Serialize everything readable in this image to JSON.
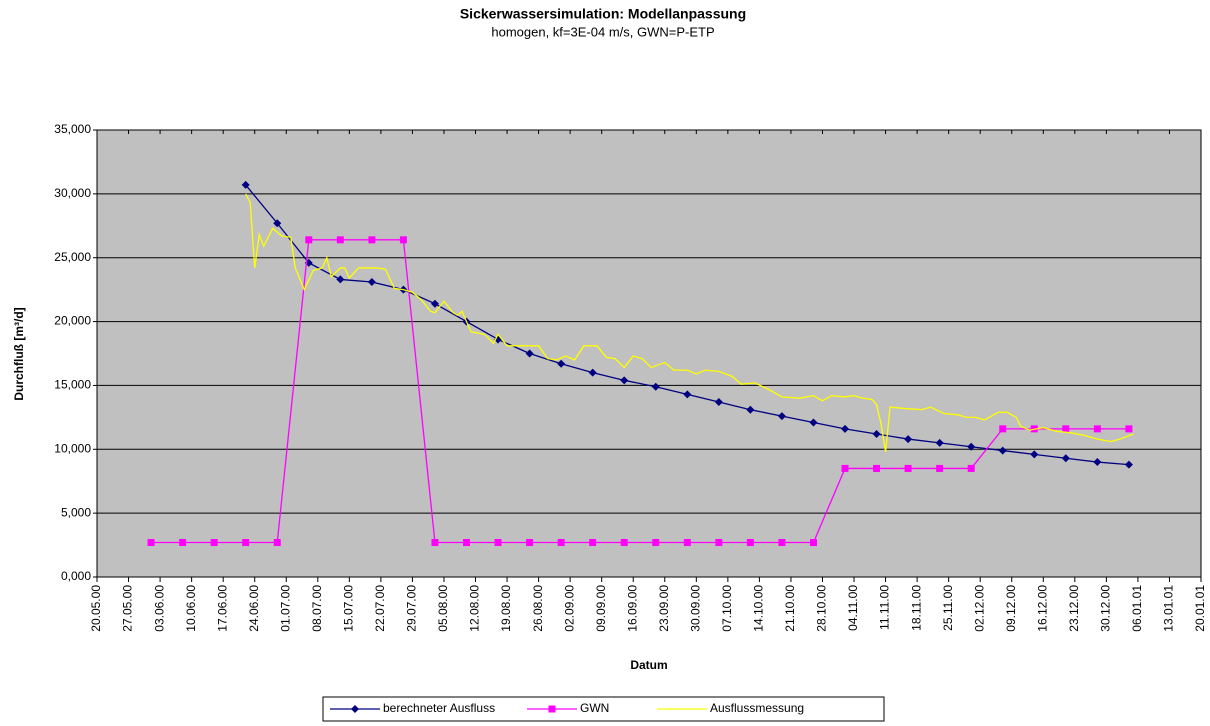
{
  "chart_data": {
    "type": "line",
    "title": "Sickerwassersimulation: Modellanpassung",
    "subtitle": "homogen, kf=3E-04 m/s, GWN=P-ETP",
    "x_label": "Datum",
    "y_label": "Durchfluß [m³/d]",
    "xlim": [
      "2000-05-20",
      "2001-01-20"
    ],
    "xticks": [
      {
        "value": "2000-05-20",
        "label": "20.05.00"
      },
      {
        "value": "2000-05-27",
        "label": "27.05.00"
      },
      {
        "value": "2000-06-03",
        "label": "03.06.00"
      },
      {
        "value": "2000-06-10",
        "label": "10.06.00"
      },
      {
        "value": "2000-06-17",
        "label": "17.06.00"
      },
      {
        "value": "2000-06-24",
        "label": "24.06.00"
      },
      {
        "value": "2000-07-01",
        "label": "01.07.00"
      },
      {
        "value": "2000-07-08",
        "label": "08.07.00"
      },
      {
        "value": "2000-07-15",
        "label": "15.07.00"
      },
      {
        "value": "2000-07-22",
        "label": "22.07.00"
      },
      {
        "value": "2000-07-29",
        "label": "29.07.00"
      },
      {
        "value": "2000-08-05",
        "label": "05.08.00"
      },
      {
        "value": "2000-08-12",
        "label": "12.08.00"
      },
      {
        "value": "2000-08-19",
        "label": "19.08.00"
      },
      {
        "value": "2000-08-26",
        "label": "26.08.00"
      },
      {
        "value": "2000-09-02",
        "label": "02.09.00"
      },
      {
        "value": "2000-09-09",
        "label": "09.09.00"
      },
      {
        "value": "2000-09-16",
        "label": "16.09.00"
      },
      {
        "value": "2000-09-23",
        "label": "23.09.00"
      },
      {
        "value": "2000-09-30",
        "label": "30.09.00"
      },
      {
        "value": "2000-10-07",
        "label": "07.10.00"
      },
      {
        "value": "2000-10-14",
        "label": "14.10.00"
      },
      {
        "value": "2000-10-21",
        "label": "21.10.00"
      },
      {
        "value": "2000-10-28",
        "label": "28.10.00"
      },
      {
        "value": "2000-11-04",
        "label": "04.11.00"
      },
      {
        "value": "2000-11-11",
        "label": "11.11.00"
      },
      {
        "value": "2000-11-18",
        "label": "18.11.00"
      },
      {
        "value": "2000-11-25",
        "label": "25.11.00"
      },
      {
        "value": "2000-12-02",
        "label": "02.12.00"
      },
      {
        "value": "2000-12-09",
        "label": "09.12.00"
      },
      {
        "value": "2000-12-16",
        "label": "16.12.00"
      },
      {
        "value": "2000-12-23",
        "label": "23.12.00"
      },
      {
        "value": "2000-12-30",
        "label": "30.12.00"
      },
      {
        "value": "2001-01-06",
        "label": "06.01.01"
      },
      {
        "value": "2001-01-13",
        "label": "13.01.01"
      },
      {
        "value": "2001-01-20",
        "label": "20.01.01"
      }
    ],
    "ylim": [
      0,
      35000
    ],
    "yticks": [
      {
        "value": 0,
        "label": "0,000"
      },
      {
        "value": 5000,
        "label": "5,000"
      },
      {
        "value": 10000,
        "label": "10,000"
      },
      {
        "value": 15000,
        "label": "15,000"
      },
      {
        "value": 20000,
        "label": "20,000"
      },
      {
        "value": 25000,
        "label": "25,000"
      },
      {
        "value": 30000,
        "label": "30,000"
      },
      {
        "value": 35000,
        "label": "35,000"
      }
    ],
    "grid": true,
    "legend": "bottom",
    "x": [
      "2000-06-01",
      "2000-06-08",
      "2000-06-15",
      "2000-06-22",
      "2000-06-29",
      "2000-07-06",
      "2000-07-13",
      "2000-07-20",
      "2000-07-27",
      "2000-08-03",
      "2000-08-10",
      "2000-08-17",
      "2000-08-24",
      "2000-08-31",
      "2000-09-07",
      "2000-09-14",
      "2000-09-21",
      "2000-09-28",
      "2000-10-05",
      "2000-10-12",
      "2000-10-19",
      "2000-10-26",
      "2000-11-02",
      "2000-11-09",
      "2000-11-16",
      "2000-11-23",
      "2000-11-30",
      "2000-12-07",
      "2000-12-14",
      "2000-12-21",
      "2000-12-28",
      "2001-01-04"
    ],
    "series": [
      {
        "name": "berechneter Ausfluss",
        "color": "#000080",
        "marker": "diamond",
        "values": [
          null,
          null,
          null,
          30700,
          27700,
          24600,
          23300,
          23100,
          22500,
          21400,
          20000,
          18600,
          17500,
          16700,
          16000,
          15400,
          14900,
          14300,
          13700,
          13100,
          12600,
          12100,
          11600,
          11200,
          10800,
          10500,
          10200,
          9900,
          9600,
          9300,
          9000,
          8800
        ]
      },
      {
        "name": "GWN",
        "color": "#ff00ff",
        "marker": "square",
        "values": [
          2700,
          2700,
          2700,
          2700,
          2700,
          26400,
          26400,
          26400,
          26400,
          2700,
          2700,
          2700,
          2700,
          2700,
          2700,
          2700,
          2700,
          2700,
          2700,
          2700,
          2700,
          2700,
          8500,
          8500,
          8500,
          8500,
          8500,
          11600,
          11600,
          11600,
          11600,
          11600
        ]
      },
      {
        "name": "Ausflussmessung",
        "color": "#ffff00",
        "marker": "none",
        "x": [
          "2000-06-22",
          "2000-06-23",
          "2000-06-24",
          "2000-06-25",
          "2000-06-26",
          "2000-06-28",
          "2000-06-30",
          "2000-07-02",
          "2000-07-03",
          "2000-07-05",
          "2000-07-07",
          "2000-07-09",
          "2000-07-10",
          "2000-07-11",
          "2000-07-13",
          "2000-07-14",
          "2000-07-15",
          "2000-07-17",
          "2000-07-21",
          "2000-07-23",
          "2000-07-25",
          "2000-07-27",
          "2000-07-29",
          "2000-07-31",
          "2000-08-02",
          "2000-08-03",
          "2000-08-05",
          "2000-08-07",
          "2000-08-08",
          "2000-08-09",
          "2000-08-11",
          "2000-08-14",
          "2000-08-16",
          "2000-08-17",
          "2000-08-19",
          "2000-08-23",
          "2000-08-26",
          "2000-08-28",
          "2000-08-30",
          "2000-09-01",
          "2000-09-03",
          "2000-09-05",
          "2000-09-08",
          "2000-09-10",
          "2000-09-12",
          "2000-09-14",
          "2000-09-16",
          "2000-09-18",
          "2000-09-20",
          "2000-09-23",
          "2000-09-25",
          "2000-09-28",
          "2000-09-30",
          "2000-10-02",
          "2000-10-05",
          "2000-10-08",
          "2000-10-10",
          "2000-10-13",
          "2000-10-16",
          "2000-10-19",
          "2000-10-23",
          "2000-10-26",
          "2000-10-28",
          "2000-10-30",
          "2000-11-02",
          "2000-11-04",
          "2000-11-06",
          "2000-11-08",
          "2000-11-09",
          "2000-11-10",
          "2000-11-11",
          "2000-11-12",
          "2000-11-15",
          "2000-11-19",
          "2000-11-21",
          "2000-11-24",
          "2000-11-27",
          "2000-11-29",
          "2000-12-01",
          "2000-12-03",
          "2000-12-06",
          "2000-12-08",
          "2000-12-10",
          "2000-12-11",
          "2000-12-13",
          "2000-12-16",
          "2000-12-19",
          "2000-12-22",
          "2000-12-25",
          "2000-12-28",
          "2000-12-31",
          "2001-01-02",
          "2001-01-05"
        ],
        "values": [
          30000,
          29300,
          24200,
          26800,
          25900,
          27300,
          26700,
          26600,
          24200,
          22500,
          24000,
          24200,
          25000,
          23500,
          24200,
          24200,
          23400,
          24200,
          24200,
          24100,
          22600,
          22500,
          22300,
          21700,
          20800,
          20700,
          21600,
          20700,
          20500,
          20800,
          19200,
          19000,
          18300,
          19000,
          18100,
          18100,
          18100,
          17100,
          17000,
          17300,
          17000,
          18100,
          18100,
          17200,
          17100,
          16400,
          17300,
          17100,
          16400,
          16800,
          16200,
          16200,
          15900,
          16200,
          16100,
          15700,
          15100,
          15200,
          14700,
          14100,
          14000,
          14200,
          13800,
          14200,
          14100,
          14200,
          14000,
          13900,
          13500,
          12000,
          9800,
          13300,
          13200,
          13100,
          13300,
          12800,
          12700,
          12500,
          12500,
          12300,
          12900,
          12900,
          12500,
          11800,
          11500,
          11700,
          11400,
          11300,
          11100,
          10800,
          10600,
          10800,
          11200
        ]
      }
    ]
  }
}
